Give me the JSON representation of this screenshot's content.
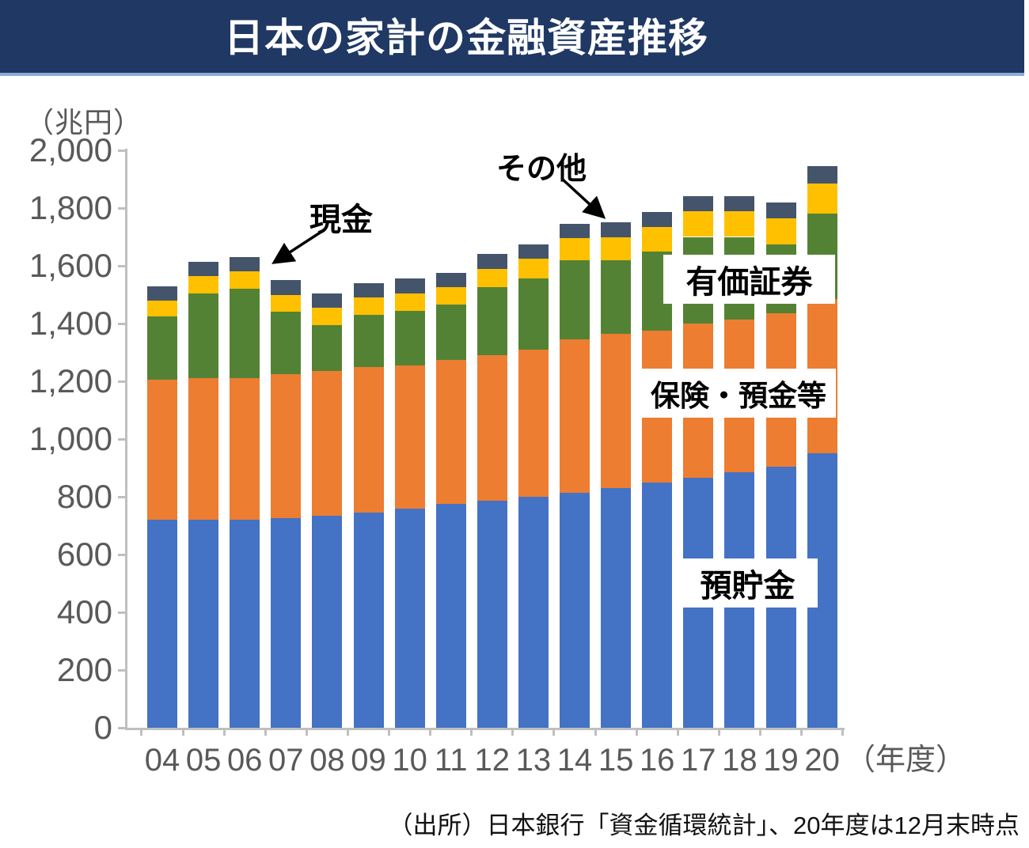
{
  "header": {
    "title": "日本の家計の金融資産推移",
    "bar_color": "#1F3864",
    "accent_line_color": "#8EAADB"
  },
  "chart_data": {
    "type": "bar",
    "stacked": true,
    "title": "日本の家計の金融資産推移",
    "unit_label": "（兆円）",
    "xlabel_suffix": "（年度）",
    "ylim": [
      0,
      2000
    ],
    "ytick_step": 200,
    "grid": false,
    "categories": [
      "04",
      "05",
      "06",
      "07",
      "08",
      "09",
      "10",
      "11",
      "12",
      "13",
      "14",
      "15",
      "16",
      "17",
      "18",
      "19",
      "20"
    ],
    "series": [
      {
        "name": "預貯金",
        "color": "#4472C4",
        "values": [
          720,
          720,
          720,
          725,
          735,
          745,
          760,
          775,
          785,
          800,
          815,
          830,
          850,
          865,
          885,
          905,
          950
        ]
      },
      {
        "name": "保険・預金等",
        "color": "#ED7D31",
        "values": [
          485,
          490,
          490,
          500,
          500,
          505,
          495,
          500,
          505,
          510,
          530,
          535,
          525,
          535,
          530,
          530,
          535
        ]
      },
      {
        "name": "有価証券",
        "color": "#548235",
        "values": [
          220,
          295,
          310,
          215,
          160,
          180,
          190,
          190,
          235,
          245,
          275,
          255,
          275,
          300,
          285,
          240,
          295
        ]
      },
      {
        "name": "現金",
        "color": "#FFC000",
        "values": [
          55,
          60,
          60,
          60,
          60,
          60,
          60,
          60,
          65,
          70,
          75,
          80,
          85,
          90,
          90,
          90,
          105
        ]
      },
      {
        "name": "その他",
        "color": "#44546A",
        "values": [
          50,
          50,
          50,
          50,
          50,
          50,
          50,
          50,
          50,
          50,
          50,
          50,
          50,
          50,
          50,
          55,
          60
        ]
      }
    ],
    "totals": [
      1530,
      1615,
      1630,
      1550,
      1505,
      1540,
      1555,
      1575,
      1640,
      1675,
      1745,
      1750,
      1785,
      1840,
      1840,
      1820,
      1945
    ],
    "axis_color": "#BFBFBF",
    "tick_label_color": "#595959"
  },
  "overlay_labels": {
    "securities": "有価証券",
    "insurance": "保険・預金等",
    "deposits": "預貯金"
  },
  "annotations": {
    "cash": "現金",
    "other": "その他"
  },
  "source": "（出所）日本銀行「資金循環統計」、20年度は12月末時点"
}
